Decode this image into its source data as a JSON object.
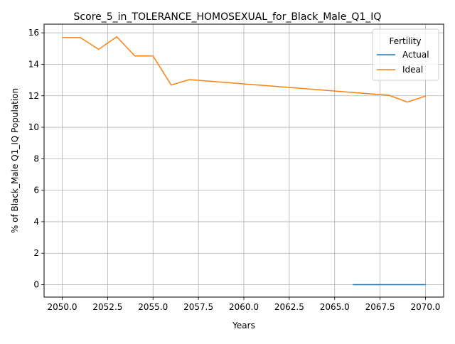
{
  "chart_data": {
    "type": "line",
    "title": "Score_5_in_TOLERANCE_HOMOSEXUAL_for_Black_Male_Q1_IQ",
    "xlabel": "Years",
    "ylabel": "% of Black_Male Q1_IQ Population",
    "xlim": [
      2049.0,
      2071.0
    ],
    "ylim": [
      -0.79,
      16.55
    ],
    "x_ticks": [
      2050.0,
      2052.5,
      2055.0,
      2057.5,
      2060.0,
      2062.5,
      2065.0,
      2067.5,
      2070.0
    ],
    "x_tick_labels": [
      "2050.0",
      "2052.5",
      "2055.0",
      "2057.5",
      "2060.0",
      "2062.5",
      "2065.0",
      "2067.5",
      "2070.0"
    ],
    "y_ticks": [
      0,
      2,
      4,
      6,
      8,
      10,
      12,
      14,
      16
    ],
    "y_tick_labels": [
      "0",
      "2",
      "4",
      "6",
      "8",
      "10",
      "12",
      "14",
      "16"
    ],
    "grid": true,
    "legend": {
      "title": "Fertility",
      "placement": "top-right"
    },
    "series": [
      {
        "name": "Actual",
        "color": "#1f77b4",
        "x": [
          2066,
          2067,
          2068,
          2069,
          2070
        ],
        "y": [
          0,
          0,
          0,
          0,
          0
        ]
      },
      {
        "name": "Ideal",
        "color": "#ff7f0e",
        "x": [
          2050,
          2051,
          2052,
          2053,
          2054,
          2055,
          2056,
          2057,
          2068,
          2069,
          2070
        ],
        "y": [
          15.7,
          15.7,
          14.95,
          15.75,
          14.53,
          14.53,
          12.68,
          13.03,
          12.03,
          11.6,
          11.98
        ]
      }
    ]
  }
}
